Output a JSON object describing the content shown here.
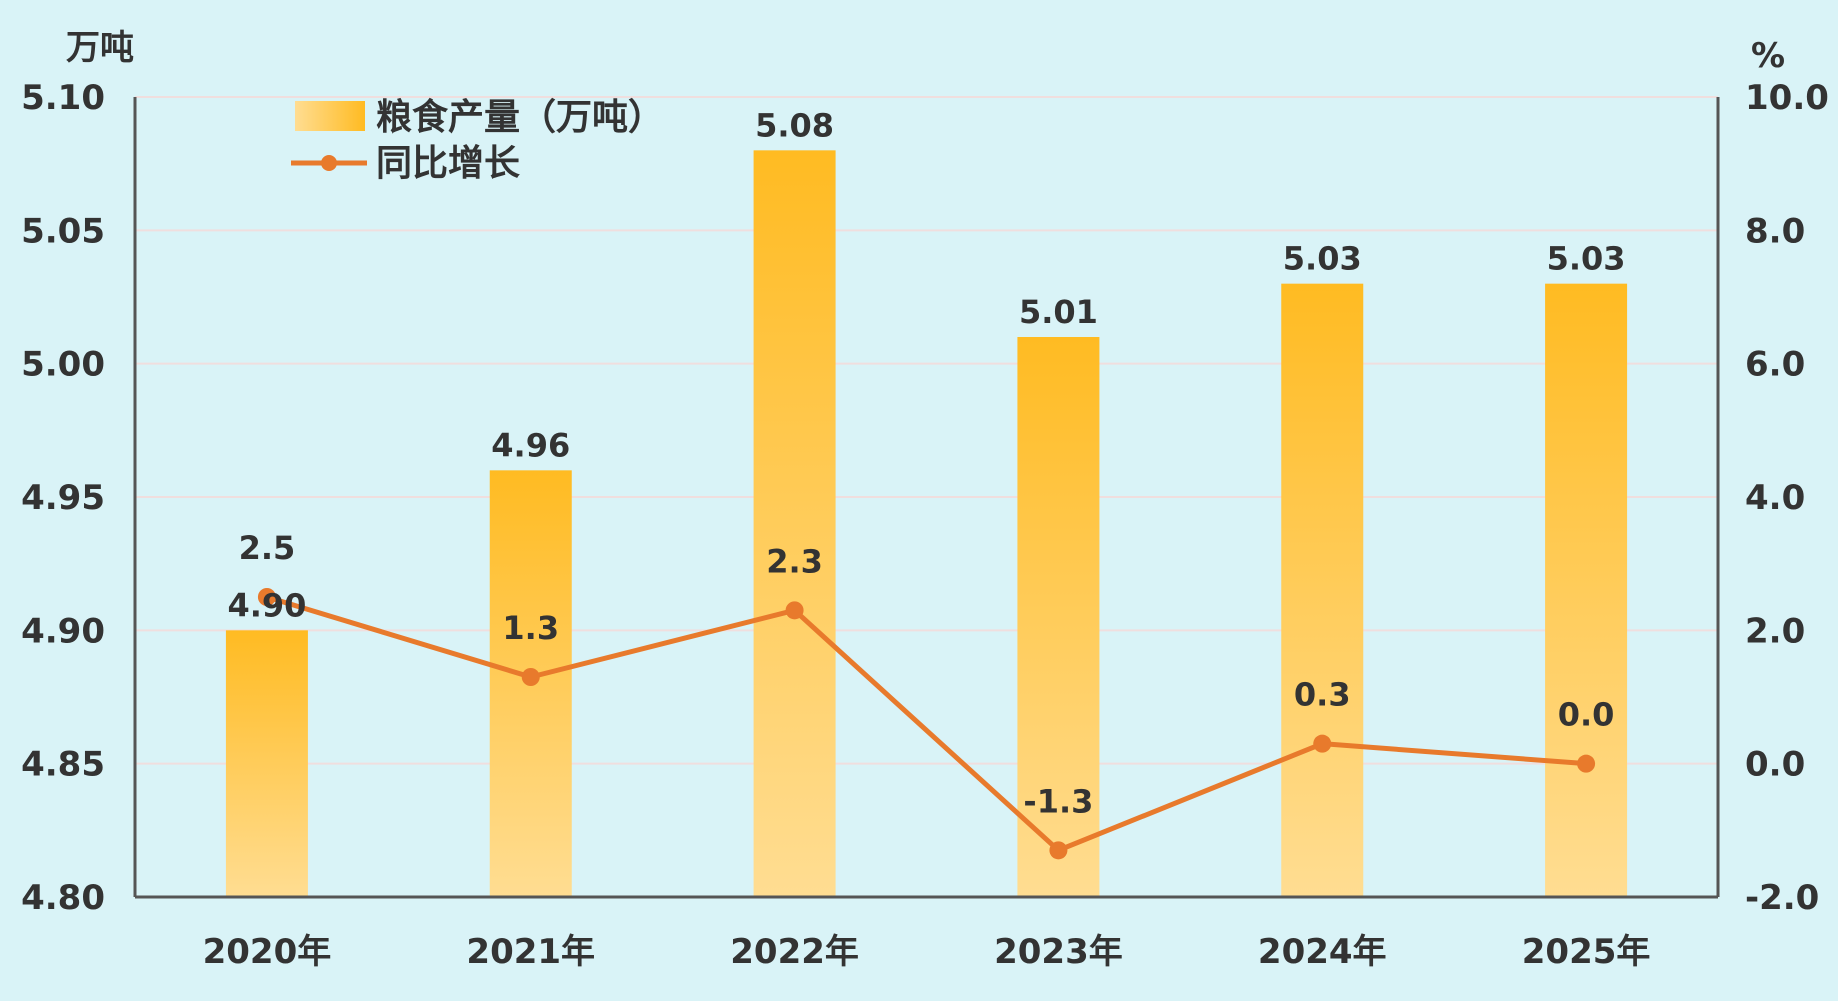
{
  "colors": {
    "background": "#d9f3f7",
    "bar_top": "#ffbb22",
    "bar_bottom": "#ffdd92",
    "line": "#e87a2c",
    "grid": "#f0dede",
    "axis": "#555555",
    "text": "#333333"
  },
  "chart_data": {
    "type": "bar",
    "categories": [
      "2020年",
      "2021年",
      "2022年",
      "2023年",
      "2024年",
      "2025年"
    ],
    "series": [
      {
        "name": "粮食产量（万吨）",
        "type": "bar",
        "axis": "left",
        "values": [
          4.9,
          4.96,
          5.08,
          5.01,
          5.03,
          5.03
        ],
        "labels": [
          "4.90",
          "4.96",
          "5.08",
          "5.01",
          "5.03",
          "5.03"
        ]
      },
      {
        "name": "同比增长",
        "type": "line",
        "axis": "right",
        "values": [
          2.5,
          1.3,
          2.3,
          -1.3,
          0.3,
          0.0
        ],
        "labels": [
          "2.5",
          "1.3",
          "2.3",
          "-1.3",
          "0.3",
          "0.0"
        ]
      }
    ],
    "y_left": {
      "unit": "万吨",
      "range": [
        4.8,
        5.1
      ],
      "ticks": [
        "4.80",
        "4.85",
        "4.90",
        "4.95",
        "5.00",
        "5.05",
        "5.10"
      ]
    },
    "y_right": {
      "unit": "%",
      "range": [
        -2.0,
        10.0
      ],
      "ticks": [
        "-2.0",
        "0.0",
        "2.0",
        "4.0",
        "6.0",
        "8.0",
        "10.0"
      ]
    },
    "grid": true,
    "legend": "top-left"
  }
}
